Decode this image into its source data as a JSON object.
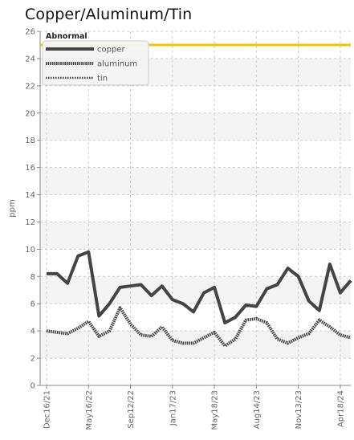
{
  "title": "Copper/Aluminum/Tin",
  "chart_data": {
    "type": "line",
    "title": "Copper/Aluminum/Tin",
    "ylabel": "ppm",
    "xlabel": "",
    "ylim": [
      0,
      26
    ],
    "y_ticks": [
      0,
      2,
      4,
      6,
      8,
      10,
      12,
      14,
      16,
      18,
      20,
      22,
      24,
      26
    ],
    "x_tick_labels": [
      "Dec16/21",
      "May16/22",
      "Sep12/22",
      "Jan17/23",
      "May18/23",
      "Aug14/23",
      "Nov13/23",
      "Apr18/24"
    ],
    "grid": true,
    "legend_position": "top-left",
    "abnormal": {
      "label": "Abnormal",
      "value": 25,
      "color": "#f2c300"
    },
    "series": [
      {
        "name": "copper",
        "style": "solid",
        "color": "#444444",
        "values": [
          8.2,
          8.2,
          7.5,
          9.5,
          9.8,
          5.1,
          6.0,
          7.2,
          7.3,
          7.4,
          6.6,
          7.3,
          6.3,
          6.0,
          5.4,
          6.8,
          7.2,
          4.6,
          5.0,
          5.9,
          5.8,
          7.1,
          7.4,
          8.6,
          8.0,
          6.2,
          5.5,
          8.9,
          6.8,
          7.7
        ]
      },
      {
        "name": "aluminum",
        "style": "dense-dots",
        "color": "#444444",
        "values": [
          4.0,
          3.9,
          3.8,
          4.2,
          4.7,
          3.6,
          4.0,
          5.7,
          4.5,
          3.7,
          3.6,
          4.3,
          3.3,
          3.1,
          3.1,
          3.5,
          3.9,
          2.9,
          3.4,
          4.8,
          4.9,
          4.6,
          3.4,
          3.1,
          3.5,
          3.8,
          4.8,
          4.3,
          3.7,
          3.5
        ]
      },
      {
        "name": "tin",
        "style": "sparse-dots",
        "color": "#444444",
        "values": []
      }
    ],
    "x_tick_point_index": [
      0,
      4,
      8,
      12,
      16,
      20,
      24,
      28
    ]
  }
}
